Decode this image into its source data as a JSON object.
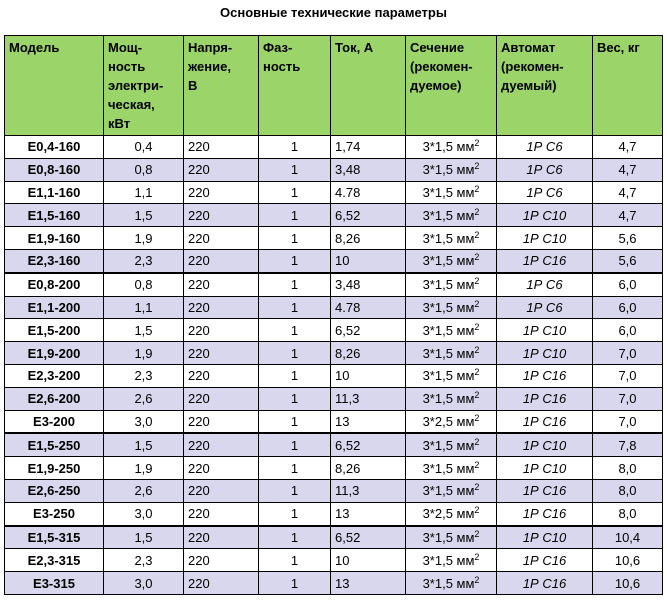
{
  "title": "Основные технические параметры",
  "headers": {
    "model": "Модель",
    "power": "Мощ-\nность\nэлектри-\nческая,\nкВт",
    "voltage": "Напря-\nжение,\nВ",
    "phases": "Фаз-\nность",
    "current": "Ток, А",
    "section": "Сечение\n(рекомен-\nдуемое)",
    "breaker": "Автомат\n(рекомен-\nдуемый)",
    "weight": "Вес, кг"
  },
  "section_unit": "мм",
  "section_sup": "2",
  "rows": [
    {
      "model": "Е0,4-160",
      "power": "0,4",
      "voltage": "220",
      "phases": "1",
      "current": "1,74",
      "section": "3*1,5",
      "breaker": "1Р С6",
      "weight": "4,7",
      "group_start": false
    },
    {
      "model": "Е0,8-160",
      "power": "0,8",
      "voltage": "220",
      "phases": "1",
      "current": "3,48",
      "section": "3*1,5",
      "breaker": "1Р С6",
      "weight": "4,7",
      "group_start": false
    },
    {
      "model": "Е1,1-160",
      "power": "1,1",
      "voltage": "220",
      "phases": "1",
      "current": "4.78",
      "section": "3*1,5",
      "breaker": "1Р С6",
      "weight": "4,7",
      "group_start": false
    },
    {
      "model": "Е1,5-160",
      "power": "1,5",
      "voltage": "220",
      "phases": "1",
      "current": "6,52",
      "section": "3*1,5",
      "breaker": "1Р С10",
      "weight": "4,7",
      "group_start": false
    },
    {
      "model": "Е1,9-160",
      "power": "1,9",
      "voltage": "220",
      "phases": "1",
      "current": "8,26",
      "section": "3*1,5",
      "breaker": "1Р С10",
      "weight": "5,6",
      "group_start": false
    },
    {
      "model": "Е2,3-160",
      "power": "2,3",
      "voltage": "220",
      "phases": "1",
      "current": "10",
      "section": "3*1,5",
      "breaker": "1Р С16",
      "weight": "5,6",
      "group_start": false
    },
    {
      "model": "Е0,8-200",
      "power": "0,8",
      "voltage": "220",
      "phases": "1",
      "current": "3,48",
      "section": "3*1,5",
      "breaker": "1Р С6",
      "weight": "6,0",
      "group_start": true
    },
    {
      "model": "Е1,1-200",
      "power": "1,1",
      "voltage": "220",
      "phases": "1",
      "current": "4.78",
      "section": "3*1,5",
      "breaker": "1Р С6",
      "weight": "6,0",
      "group_start": false
    },
    {
      "model": "Е1,5-200",
      "power": "1,5",
      "voltage": "220",
      "phases": "1",
      "current": "6,52",
      "section": "3*1,5",
      "breaker": "1Р С10",
      "weight": "6,0",
      "group_start": false
    },
    {
      "model": "Е1,9-200",
      "power": "1,9",
      "voltage": "220",
      "phases": "1",
      "current": "8,26",
      "section": "3*1,5",
      "breaker": "1Р С10",
      "weight": "7,0",
      "group_start": false
    },
    {
      "model": "Е2,3-200",
      "power": "2,3",
      "voltage": "220",
      "phases": "1",
      "current": "10",
      "section": "3*1,5",
      "breaker": "1Р С16",
      "weight": "7,0",
      "group_start": false
    },
    {
      "model": "Е2,6-200",
      "power": "2,6",
      "voltage": "220",
      "phases": "1",
      "current": "11,3",
      "section": "3*1,5",
      "breaker": "1Р С16",
      "weight": "7,0",
      "group_start": false
    },
    {
      "model": "Е3-200",
      "power": "3,0",
      "voltage": "220",
      "phases": "1",
      "current": "13",
      "section": "3*2,5",
      "breaker": "1Р С16",
      "weight": "7,0",
      "group_start": false
    },
    {
      "model": "Е1,5-250",
      "power": "1,5",
      "voltage": "220",
      "phases": "1",
      "current": "6,52",
      "section": "3*1,5",
      "breaker": "1Р С10",
      "weight": "7,8",
      "group_start": true
    },
    {
      "model": "Е1,9-250",
      "power": "1,9",
      "voltage": "220",
      "phases": "1",
      "current": "8,26",
      "section": "3*1,5",
      "breaker": "1Р С10",
      "weight": "8,0",
      "group_start": false
    },
    {
      "model": "Е2,6-250",
      "power": "2,6",
      "voltage": "220",
      "phases": "1",
      "current": "11,3",
      "section": "3*1,5",
      "breaker": "1Р С16",
      "weight": "8,0",
      "group_start": false
    },
    {
      "model": "Е3-250",
      "power": "3,0",
      "voltage": "220",
      "phases": "1",
      "current": "13",
      "section": "3*2,5",
      "breaker": "1Р С16",
      "weight": "8,0",
      "group_start": false
    },
    {
      "model": "Е1,5-315",
      "power": "1,5",
      "voltage": "220",
      "phases": "1",
      "current": "6,52",
      "section": "3*1,5",
      "breaker": "1Р С10",
      "weight": "10,4",
      "group_start": true
    },
    {
      "model": "Е2,3-315",
      "power": "2,3",
      "voltage": "220",
      "phases": "1",
      "current": "10",
      "section": "3*1,5",
      "breaker": "1Р С16",
      "weight": "10,6",
      "group_start": false
    },
    {
      "model": "Е3-315",
      "power": "3,0",
      "voltage": "220",
      "phases": "1",
      "current": "13",
      "section": "3*1,5",
      "breaker": "1Р С16",
      "weight": "10,6",
      "group_start": false
    }
  ]
}
